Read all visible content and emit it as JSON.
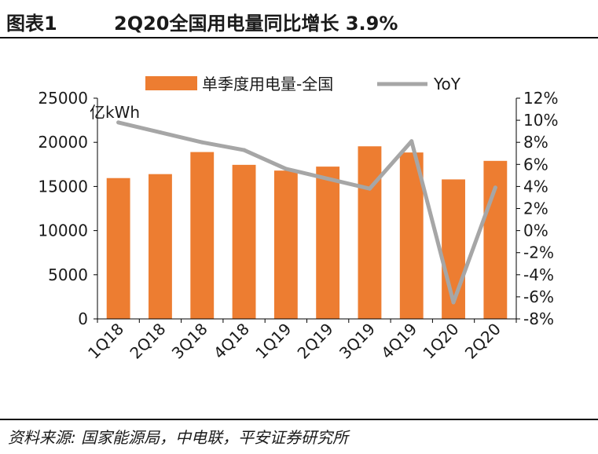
{
  "header": {
    "label": "图表1",
    "title": "2Q20全国用电量同比增长 3.9%"
  },
  "source": "资料来源: 国家能源局，中电联，平安证券研究所",
  "colors": {
    "bar": "#ED7D31",
    "line": "#A6A6A6"
  },
  "chart_data": {
    "type": "bar",
    "categories": [
      "1Q18",
      "2Q18",
      "3Q18",
      "4Q18",
      "1Q19",
      "2Q19",
      "3Q19",
      "4Q19",
      "1Q20",
      "2Q20"
    ],
    "series": [
      {
        "name": "单季度用电量-全国",
        "type": "bar",
        "axis": "left",
        "values": [
          15950,
          16400,
          18900,
          17450,
          16800,
          17250,
          19550,
          18850,
          15800,
          17900
        ]
      },
      {
        "name": "YoY",
        "type": "line",
        "axis": "right",
        "values": [
          9.8,
          8.9,
          8.0,
          7.3,
          5.6,
          4.7,
          3.8,
          8.1,
          -6.5,
          3.9
        ]
      }
    ],
    "ylabel": "亿kWh",
    "ylim": [
      0,
      25000
    ],
    "yticks": [
      "0",
      "5000",
      "10000",
      "15000",
      "20000",
      "25000"
    ],
    "y2lim": [
      -8,
      12
    ],
    "y2ticks": [
      "-8%",
      "-6%",
      "-4%",
      "-2%",
      "0%",
      "2%",
      "4%",
      "6%",
      "8%",
      "10%",
      "12%"
    ],
    "legend": "top",
    "grid": false
  }
}
